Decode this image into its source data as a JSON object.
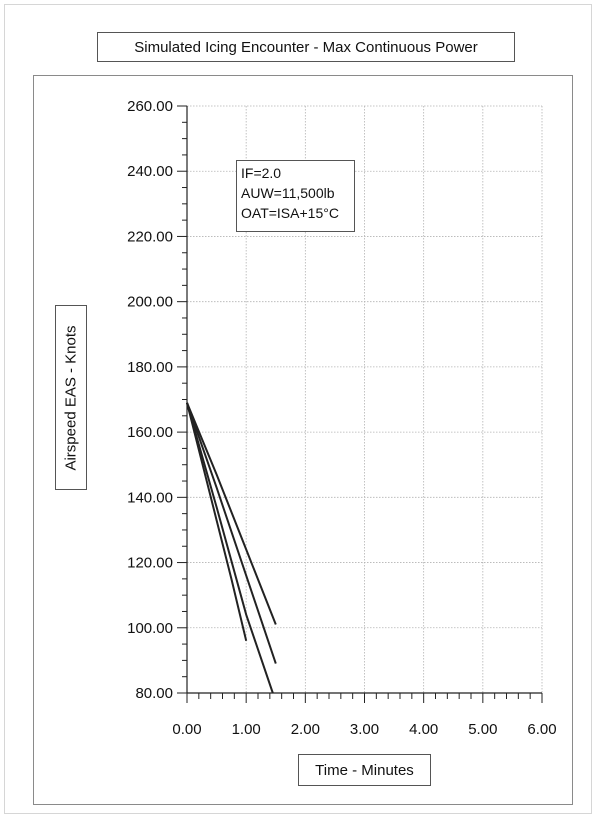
{
  "chart_data": {
    "type": "line",
    "title": "Simulated Icing Encounter - Max Continuous Power",
    "xlabel": "Time - Minutes",
    "ylabel": "Airspeed EAS - Knots",
    "xlim": [
      0,
      6
    ],
    "ylim": [
      80,
      260
    ],
    "x_ticks": [
      "0.00",
      "1.00",
      "2.00",
      "3.00",
      "4.00",
      "5.00",
      "6.00"
    ],
    "y_ticks": [
      "80.00",
      "100.00",
      "120.00",
      "140.00",
      "160.00",
      "180.00",
      "200.00",
      "220.00",
      "240.00",
      "260.00"
    ],
    "grid": true,
    "annotation": [
      "IF=2.0",
      "AUW=11,500lb",
      "OAT=ISA+15°C"
    ],
    "series_color": "#222222",
    "series": [
      {
        "x": [
          0,
          0.25,
          0.5,
          0.75,
          1.0
        ],
        "y": [
          169,
          151,
          133,
          115,
          96
        ]
      },
      {
        "x": [
          0,
          0.5,
          1.0,
          1.45
        ],
        "y": [
          169,
          137,
          104,
          80
        ]
      },
      {
        "x": [
          0,
          0.5,
          1.0,
          1.5
        ],
        "y": [
          169,
          143,
          116,
          89
        ]
      },
      {
        "x": [
          0,
          0.5,
          1.0,
          1.5
        ],
        "y": [
          169,
          147,
          124,
          101
        ]
      }
    ]
  }
}
